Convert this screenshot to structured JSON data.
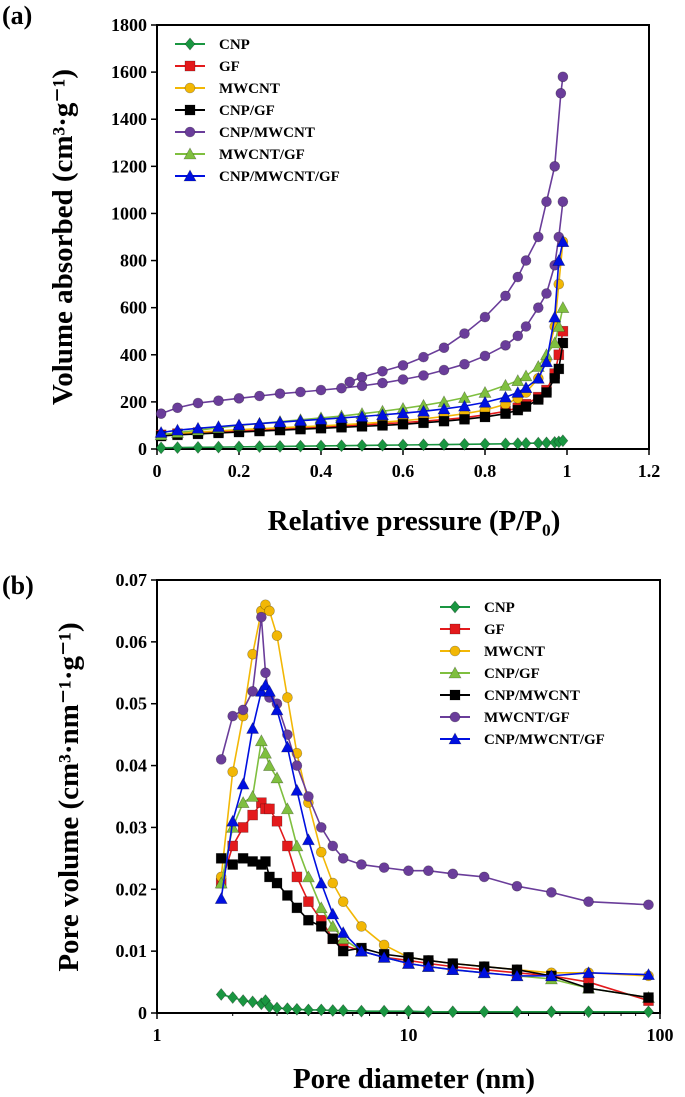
{
  "chart_data": [
    {
      "panel_label": "(a)",
      "type": "line",
      "xlabel": "Relative pressure (P/P₀)",
      "ylabel": "Volume absorbed (cm³·g⁻¹)",
      "xlim": [
        0,
        1.2
      ],
      "ylim": [
        0,
        1800
      ],
      "xticks": [
        0,
        0.2,
        0.4,
        0.6,
        0.8,
        1.0,
        1.2
      ],
      "xtick_labels": [
        "0",
        "0.2",
        "0.4",
        "0.6",
        "0.8",
        "1",
        "1.2"
      ],
      "yticks": [
        0,
        200,
        400,
        600,
        800,
        1000,
        1200,
        1400,
        1600,
        1800
      ],
      "xscale": "linear",
      "legend_position": "top-left",
      "x": [
        0.01,
        0.05,
        0.1,
        0.15,
        0.2,
        0.25,
        0.3,
        0.35,
        0.4,
        0.45,
        0.5,
        0.55,
        0.6,
        0.65,
        0.7,
        0.75,
        0.8,
        0.85,
        0.88,
        0.9,
        0.93,
        0.95,
        0.97,
        0.98,
        0.99
      ],
      "series": [
        {
          "name": "CNP",
          "color": "#1a9641",
          "marker": "diamond",
          "values": [
            5,
            6,
            7,
            8,
            9,
            10,
            11,
            12,
            13,
            14,
            15,
            16,
            17,
            18,
            19,
            20,
            21,
            22,
            23,
            24,
            25,
            26,
            28,
            30,
            35
          ]
        },
        {
          "name": "GF",
          "color": "#e31a1c",
          "marker": "square",
          "values": [
            60,
            65,
            70,
            74,
            78,
            82,
            86,
            90,
            94,
            98,
            102,
            107,
            112,
            118,
            125,
            133,
            145,
            160,
            175,
            190,
            220,
            250,
            320,
            400,
            500
          ]
        },
        {
          "name": "MWCNT",
          "color": "#f2b705",
          "marker": "circle",
          "values": [
            60,
            66,
            72,
            77,
            82,
            86,
            90,
            94,
            98,
            103,
            108,
            114,
            120,
            128,
            138,
            150,
            165,
            190,
            215,
            240,
            300,
            380,
            520,
            700,
            880
          ]
        },
        {
          "name": "CNP/GF",
          "color": "#000000",
          "marker": "square",
          "values": [
            55,
            60,
            64,
            68,
            72,
            76,
            80,
            84,
            88,
            92,
            96,
            100,
            105,
            111,
            118,
            126,
            136,
            150,
            165,
            180,
            210,
            240,
            300,
            340,
            450
          ]
        },
        {
          "name": "CNP/MWCNT",
          "color": "#6a3d9a",
          "marker": "circle",
          "values": [
            150,
            175,
            195,
            205,
            215,
            225,
            235,
            242,
            250,
            258,
            268,
            280,
            295,
            312,
            335,
            360,
            395,
            440,
            480,
            520,
            600,
            660,
            780,
            900,
            1050
          ],
          "desorption_x": [
            0.99,
            0.985,
            0.97,
            0.95,
            0.93,
            0.9,
            0.88,
            0.85,
            0.8,
            0.75,
            0.7,
            0.65,
            0.6,
            0.55,
            0.5,
            0.47
          ],
          "desorption_values": [
            1580,
            1510,
            1200,
            1050,
            900,
            800,
            730,
            650,
            560,
            490,
            430,
            390,
            355,
            330,
            305,
            285
          ]
        },
        {
          "name": "MWCNT/GF",
          "color": "#7fbf3f",
          "marker": "triangle",
          "values": [
            60,
            70,
            80,
            90,
            100,
            108,
            116,
            124,
            132,
            140,
            150,
            160,
            172,
            185,
            200,
            218,
            240,
            270,
            290,
            310,
            350,
            400,
            450,
            520,
            600
          ]
        },
        {
          "name": "CNP/MWCNT/GF",
          "color": "#0010e0",
          "marker": "triangle",
          "values": [
            70,
            80,
            88,
            95,
            102,
            108,
            114,
            120,
            126,
            132,
            138,
            145,
            152,
            160,
            170,
            182,
            198,
            220,
            240,
            260,
            300,
            370,
            560,
            800,
            880
          ]
        }
      ]
    },
    {
      "panel_label": "(b)",
      "type": "line",
      "xlabel": "Pore diameter (nm)",
      "ylabel": "Pore volume (cm³·nm⁻¹·g⁻¹)",
      "xlim": [
        1,
        100
      ],
      "ylim": [
        0,
        0.07
      ],
      "xticks": [
        1,
        10,
        100
      ],
      "xtick_labels": [
        "1",
        "10",
        "100"
      ],
      "yticks": [
        0,
        0.01,
        0.02,
        0.03,
        0.04,
        0.05,
        0.06,
        0.07
      ],
      "ytick_labels": [
        "0",
        "0.01",
        "0.02",
        "0.03",
        "0.04",
        "0.05",
        "0.06",
        "0.07"
      ],
      "xscale": "log",
      "legend_position": "top-right",
      "x": [
        1.8,
        2.0,
        2.2,
        2.4,
        2.6,
        2.7,
        2.8,
        3.0,
        3.3,
        3.6,
        4.0,
        4.5,
        5.0,
        5.5,
        6.5,
        8,
        10,
        12,
        15,
        20,
        27,
        37,
        52,
        90
      ],
      "series": [
        {
          "name": "CNP",
          "color": "#1a9641",
          "marker": "diamond",
          "values": [
            0.003,
            0.0025,
            0.002,
            0.0018,
            0.0015,
            0.002,
            0.001,
            0.0008,
            0.0007,
            0.0006,
            0.0005,
            0.0005,
            0.0004,
            0.0004,
            0.0003,
            0.0003,
            0.0003,
            0.0002,
            0.0002,
            0.0002,
            0.0002,
            0.0002,
            0.0002,
            0.0002
          ]
        },
        {
          "name": "GF",
          "color": "#e31a1c",
          "marker": "square",
          "values": [
            0.021,
            0.027,
            0.03,
            0.032,
            0.034,
            0.033,
            0.033,
            0.031,
            0.027,
            0.022,
            0.018,
            0.015,
            0.012,
            0.011,
            0.01,
            0.009,
            0.0085,
            0.008,
            0.0075,
            0.007,
            0.0065,
            0.006,
            0.005,
            0.002
          ]
        },
        {
          "name": "MWCNT",
          "color": "#f2b705",
          "marker": "circle",
          "values": [
            0.022,
            0.039,
            0.048,
            0.058,
            0.065,
            0.066,
            0.065,
            0.061,
            0.051,
            0.042,
            0.034,
            0.026,
            0.021,
            0.018,
            0.014,
            0.011,
            0.009,
            0.0085,
            0.008,
            0.0075,
            0.007,
            0.0065,
            0.0065,
            0.006
          ]
        },
        {
          "name": "CNP/GF",
          "color": "#7fbf3f",
          "marker": "triangle",
          "values": [
            0.021,
            0.03,
            0.034,
            0.035,
            0.044,
            0.042,
            0.04,
            0.038,
            0.033,
            0.027,
            0.022,
            0.017,
            0.014,
            0.012,
            0.01,
            0.009,
            0.008,
            0.0075,
            0.007,
            0.0065,
            0.006,
            0.0055,
            0.004,
            0.0025
          ]
        },
        {
          "name": "CNP/MWCNT",
          "color": "#000000",
          "marker": "square",
          "values": [
            0.025,
            0.024,
            0.025,
            0.0245,
            0.024,
            0.0245,
            0.022,
            0.021,
            0.019,
            0.017,
            0.015,
            0.014,
            0.012,
            0.01,
            0.0105,
            0.0095,
            0.009,
            0.0085,
            0.008,
            0.0075,
            0.007,
            0.006,
            0.004,
            0.0025
          ]
        },
        {
          "name": "MWCNT/GF",
          "color": "#6a3d9a",
          "marker": "circle",
          "values": [
            0.041,
            0.048,
            0.049,
            0.052,
            0.064,
            0.055,
            0.051,
            0.05,
            0.045,
            0.04,
            0.035,
            0.03,
            0.027,
            0.025,
            0.024,
            0.0235,
            0.023,
            0.023,
            0.0225,
            0.022,
            0.0205,
            0.0195,
            0.018,
            0.0175
          ]
        },
        {
          "name": "CNP/MWCNT/GF",
          "color": "#0010e0",
          "marker": "triangle",
          "values": [
            0.0185,
            0.031,
            0.037,
            0.046,
            0.052,
            0.053,
            0.052,
            0.049,
            0.043,
            0.036,
            0.028,
            0.021,
            0.016,
            0.013,
            0.01,
            0.009,
            0.008,
            0.0075,
            0.007,
            0.0065,
            0.006,
            0.006,
            0.0065,
            0.0062
          ]
        }
      ]
    }
  ]
}
